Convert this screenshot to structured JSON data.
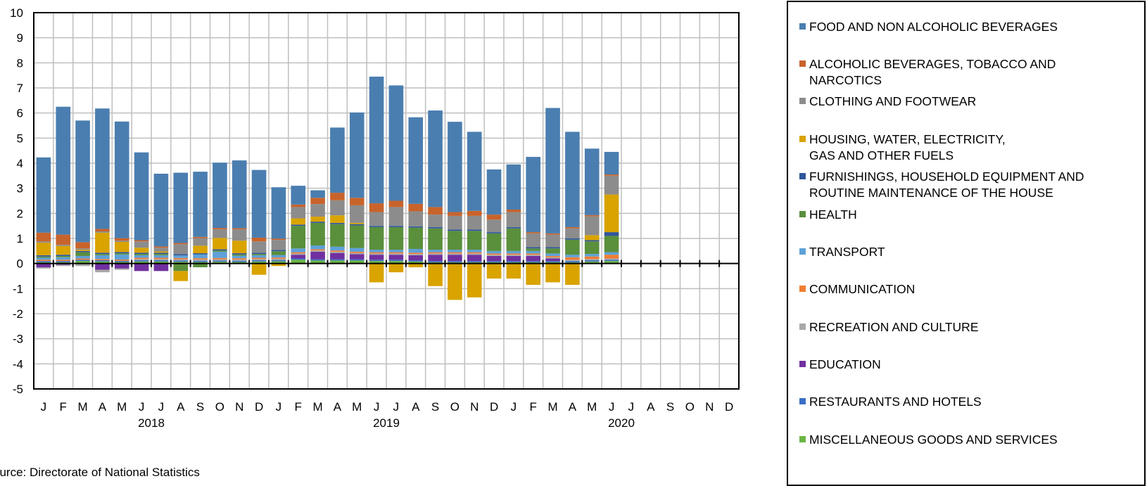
{
  "source_note": "ource:  Directorate of National  Statistics",
  "colors": {
    "food": "#4a7eb0",
    "alcohol": "#c8632b",
    "clothing": "#8c8c8c",
    "housing": "#d9a300",
    "furnishings": "#2f569b",
    "health": "#5a8f3c",
    "transport": "#5ea1d8",
    "communication": "#f07d33",
    "recreation": "#a8a8a8",
    "education": "#7030a0",
    "restaurants": "#3b6fc4",
    "misc": "#6bb543"
  },
  "chart_data": {
    "type": "bar",
    "stacked": true,
    "ylim": [
      -5,
      10
    ],
    "yticks": [
      "10",
      "9",
      "8",
      "7",
      "6",
      "5",
      "4",
      "3",
      "2",
      "1",
      "0",
      "-1",
      "-2",
      "-3",
      "-4",
      "-5"
    ],
    "grid": true,
    "legend_position": "right",
    "categories": [
      "J",
      "F",
      "M",
      "A",
      "M",
      "J",
      "J",
      "A",
      "S",
      "O",
      "N",
      "D",
      "J",
      "F",
      "M",
      "A",
      "M",
      "J",
      "J",
      "A",
      "S",
      "O",
      "N",
      "D",
      "J",
      "F",
      "M",
      "A",
      "M",
      "J",
      "J",
      "A",
      "S",
      "O",
      "N",
      "D"
    ],
    "year_labels": [
      {
        "label": "2018",
        "center_index": 5.5
      },
      {
        "label": "2019",
        "center_index": 17.5
      },
      {
        "label": "2020",
        "center_index": 29.5
      }
    ],
    "series": [
      {
        "name": "MISCELLANEOUS  GOODS AND SERVICES",
        "key": "misc",
        "values": [
          0.05,
          0.05,
          0.1,
          0.08,
          0.06,
          0.08,
          0.08,
          0.07,
          0.06,
          0.07,
          0.06,
          0.08,
          0.09,
          0.15,
          0.12,
          0.12,
          0.12,
          0.1,
          0.1,
          0.08,
          0.05,
          0.05,
          0.05,
          0.05,
          0.05,
          0.05,
          0.05,
          0.05,
          0.08,
          0.1,
          null,
          null,
          null,
          null,
          null,
          null
        ]
      },
      {
        "name": "RESTAURANTS AND HOTELS",
        "key": "restaurants",
        "values": [
          0.05,
          0.05,
          0.05,
          0.05,
          0.05,
          0.05,
          0.05,
          0.05,
          0.05,
          0.05,
          0.05,
          0.05,
          0.05,
          0.05,
          0.05,
          0.05,
          0.05,
          0.05,
          0.05,
          0.05,
          0.05,
          0.05,
          0.05,
          0.05,
          0.05,
          0.05,
          0.05,
          0.05,
          0.05,
          0.05,
          null,
          null,
          null,
          null,
          null,
          null
        ]
      },
      {
        "name": "EDUCATION",
        "key": "education",
        "values": [
          -0.15,
          -0.05,
          0.0,
          -0.25,
          -0.2,
          -0.3,
          -0.3,
          0.0,
          0.0,
          0.0,
          0.0,
          0.0,
          0.0,
          0.15,
          0.3,
          0.25,
          0.2,
          0.2,
          0.2,
          0.2,
          0.25,
          0.25,
          0.25,
          0.2,
          0.2,
          0.2,
          0.1,
          0.0,
          0.0,
          0.0,
          null,
          null,
          null,
          null,
          null,
          null
        ]
      },
      {
        "name": "RECREATION AND CULTURE",
        "key": "recreation",
        "values": [
          -0.05,
          -0.05,
          -0.1,
          -0.1,
          -0.05,
          0.05,
          0.05,
          0.05,
          0.05,
          0.05,
          0.05,
          0.05,
          0.05,
          0.05,
          0.05,
          0.05,
          0.05,
          0.05,
          0.05,
          0.05,
          0.05,
          0.05,
          0.05,
          0.05,
          0.05,
          0.05,
          0.05,
          0.05,
          0.05,
          0.05,
          null,
          null,
          null,
          null,
          null,
          null
        ]
      },
      {
        "name": "COMMUNICATION",
        "key": "communication",
        "values": [
          0.05,
          0.05,
          0.05,
          0.05,
          0.05,
          0.05,
          0.05,
          0.05,
          0.05,
          0.05,
          0.05,
          0.05,
          0.05,
          0.05,
          0.05,
          0.05,
          0.05,
          0.05,
          0.05,
          0.05,
          0.05,
          0.05,
          0.05,
          0.05,
          0.05,
          0.05,
          0.05,
          0.1,
          0.1,
          0.15,
          null,
          null,
          null,
          null,
          null,
          null
        ]
      },
      {
        "name": "TRANSPORT",
        "key": "transport",
        "values": [
          0.08,
          0.1,
          0.1,
          0.15,
          0.2,
          0.1,
          0.1,
          0.1,
          0.15,
          0.25,
          0.1,
          0.1,
          0.1,
          0.15,
          0.15,
          0.15,
          0.15,
          0.1,
          0.1,
          0.15,
          0.1,
          0.1,
          0.1,
          0.1,
          0.1,
          0.1,
          0.1,
          0.1,
          0.1,
          0.1,
          null,
          null,
          null,
          null,
          null,
          null
        ]
      },
      {
        "name": "HEALTH",
        "key": "health",
        "values": [
          0.05,
          0.05,
          0.15,
          0.05,
          0.05,
          0.05,
          0.05,
          -0.3,
          -0.15,
          0.05,
          0.05,
          0.05,
          0.15,
          0.9,
          0.9,
          0.9,
          0.9,
          0.9,
          0.9,
          0.85,
          0.85,
          0.75,
          0.75,
          0.7,
          0.9,
          0.1,
          0.2,
          0.6,
          0.5,
          0.65,
          null,
          null,
          null,
          null,
          null,
          null
        ]
      },
      {
        "name": "FURNISHINGS, HOUSEHOLD EQUIPMENT AND\nROUTINE MAINTENANCE OF THE HOUSE",
        "key": "furnishings",
        "values": [
          0.05,
          0.05,
          0.05,
          0.05,
          0.05,
          0.05,
          0.05,
          0.05,
          0.05,
          0.05,
          0.05,
          0.05,
          0.05,
          0.05,
          0.05,
          0.05,
          0.05,
          0.05,
          0.05,
          0.05,
          0.05,
          0.05,
          0.05,
          0.05,
          0.05,
          0.05,
          0.05,
          0.05,
          0.05,
          0.15,
          null,
          null,
          null,
          null,
          null,
          null
        ]
      },
      {
        "name": "HOUSING, WATER, ELECTRICITY,\nGAS AND OTHER FUELS",
        "key": "housing",
        "values": [
          0.5,
          0.35,
          0.05,
          0.8,
          0.4,
          0.2,
          0.05,
          -0.4,
          0.3,
          0.45,
          0.5,
          -0.45,
          -0.1,
          0.25,
          0.2,
          0.3,
          0.05,
          -0.75,
          -0.35,
          -0.15,
          -0.9,
          -1.45,
          -1.35,
          -0.6,
          -0.6,
          -0.85,
          -0.75,
          -0.85,
          0.2,
          1.5,
          null,
          null,
          null,
          null,
          null,
          null
        ]
      },
      {
        "name": "CLOTHING AND FOOTWEAR",
        "key": "clothing",
        "values": [
          0.05,
          0.05,
          0.05,
          0.05,
          0.05,
          0.25,
          0.15,
          0.4,
          0.3,
          0.35,
          0.45,
          0.45,
          0.4,
          0.45,
          0.5,
          0.6,
          0.7,
          0.55,
          0.75,
          0.6,
          0.5,
          0.55,
          0.55,
          0.5,
          0.6,
          0.55,
          0.5,
          0.4,
          0.75,
          0.75,
          null,
          null,
          null,
          null,
          null,
          null
        ]
      },
      {
        "name": "ALCOHOLIC BEVERAGES,  TOBACCO AND\nNARCOTICS",
        "key": "alcohol",
        "values": [
          0.35,
          0.4,
          0.25,
          0.1,
          0.1,
          0.05,
          0.05,
          0.05,
          0.05,
          0.05,
          0.05,
          0.15,
          0.05,
          0.1,
          0.25,
          0.3,
          0.3,
          0.35,
          0.25,
          0.3,
          0.3,
          0.15,
          0.2,
          0.2,
          0.1,
          0.05,
          0.05,
          0.05,
          0.05,
          0.05,
          null,
          null,
          null,
          null,
          null,
          null
        ]
      },
      {
        "name": "FOOD AND NON ALCOHOLIC  BEVERAGES",
        "key": "food",
        "values": [
          3.0,
          5.1,
          4.85,
          4.8,
          4.65,
          3.5,
          2.9,
          2.8,
          2.6,
          2.6,
          2.7,
          2.7,
          2.05,
          0.75,
          0.3,
          2.6,
          3.4,
          5.05,
          4.6,
          3.45,
          3.85,
          3.6,
          3.15,
          1.8,
          1.8,
          3.0,
          5.0,
          3.8,
          2.65,
          0.9,
          null,
          null,
          null,
          null,
          null,
          null
        ]
      }
    ]
  },
  "legend": [
    {
      "key": "food",
      "label": "FOOD AND NON ALCOHOLIC  BEVERAGES"
    },
    {
      "key": "alcohol",
      "label": "ALCOHOLIC BEVERAGES,  TOBACCO AND\nNARCOTICS"
    },
    {
      "key": "clothing",
      "label": "CLOTHING AND FOOTWEAR"
    },
    {
      "key": "housing",
      "label": "HOUSING, WATER, ELECTRICITY,\nGAS AND OTHER FUELS"
    },
    {
      "key": "furnishings",
      "label": "FURNISHINGS, HOUSEHOLD EQUIPMENT AND\nROUTINE MAINTENANCE OF THE HOUSE"
    },
    {
      "key": "health",
      "label": "HEALTH"
    },
    {
      "key": "transport",
      "label": "TRANSPORT"
    },
    {
      "key": "communication",
      "label": "COMMUNICATION"
    },
    {
      "key": "recreation",
      "label": "RECREATION AND CULTURE"
    },
    {
      "key": "education",
      "label": "EDUCATION"
    },
    {
      "key": "restaurants",
      "label": "RESTAURANTS AND HOTELS"
    },
    {
      "key": "misc",
      "label": "MISCELLANEOUS  GOODS AND SERVICES"
    }
  ]
}
